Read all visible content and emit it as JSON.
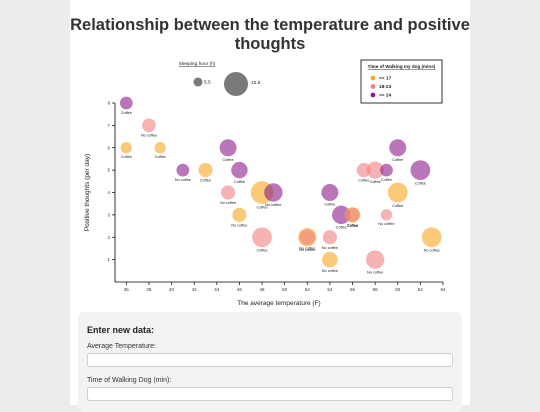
{
  "chart_data": {
    "type": "scatter",
    "title": "Relationship between the temperature and positive thoughts",
    "xlabel": "The average temperature (F)",
    "ylabel": "Positive thoughts (per day)",
    "xlim": [
      35,
      64
    ],
    "ylim": [
      0,
      8
    ],
    "xticks": [
      36,
      38,
      40,
      42,
      44,
      46,
      48,
      50,
      52,
      54,
      56,
      58,
      60,
      62,
      64
    ],
    "yticks": [
      1,
      2,
      3,
      4,
      5,
      6,
      7,
      8
    ],
    "size_legend": {
      "title": "Sleeping hour (h)",
      "min_label": "5.5",
      "max_label": "10.5",
      "min_value": 5.5,
      "max_value": 10.5
    },
    "color_legend": {
      "title": "Time of Walking my dog (mins)",
      "entries": [
        {
          "label": "<= 17",
          "color": "#f9a620"
        },
        {
          "label": "18-23",
          "color": "#f08080"
        },
        {
          "label": ">= 24",
          "color": "#8b1a8b"
        }
      ]
    },
    "points": [
      {
        "x": 36,
        "y": 6,
        "sleep": 6.0,
        "walk": "<= 17",
        "label": "Coffee"
      },
      {
        "x": 36,
        "y": 8,
        "sleep": 6.5,
        "walk": ">= 24",
        "label": "Coffee"
      },
      {
        "x": 38,
        "y": 7,
        "sleep": 6.8,
        "walk": "18-23",
        "label": "No coffee"
      },
      {
        "x": 39,
        "y": 6,
        "sleep": 6.0,
        "walk": "<= 17",
        "label": "Coffee"
      },
      {
        "x": 41,
        "y": 5,
        "sleep": 6.5,
        "walk": ">= 24",
        "label": "No coffee"
      },
      {
        "x": 43,
        "y": 5,
        "sleep": 7.0,
        "walk": "<= 17",
        "label": "Coffee"
      },
      {
        "x": 45,
        "y": 6,
        "sleep": 8.0,
        "walk": ">= 24",
        "label": "Coffee"
      },
      {
        "x": 45,
        "y": 4,
        "sleep": 7.0,
        "walk": "18-23",
        "label": "No coffee"
      },
      {
        "x": 46,
        "y": 5,
        "sleep": 7.8,
        "walk": ">= 24",
        "label": "Coffee"
      },
      {
        "x": 46,
        "y": 3,
        "sleep": 7.0,
        "walk": "<= 17",
        "label": "No coffee"
      },
      {
        "x": 48,
        "y": 4,
        "sleep": 10.0,
        "walk": "<= 17",
        "label": "Coffee"
      },
      {
        "x": 48,
        "y": 2,
        "sleep": 9.0,
        "walk": "18-23",
        "label": "Coffee"
      },
      {
        "x": 49,
        "y": 4,
        "sleep": 8.5,
        "walk": ">= 24",
        "label": "No coffee"
      },
      {
        "x": 52,
        "y": 2,
        "sleep": 8.5,
        "walk": "<= 17",
        "label": "No coffee"
      },
      {
        "x": 52,
        "y": 2,
        "sleep": 7.5,
        "walk": "18-23",
        "label": "No coffee"
      },
      {
        "x": 54,
        "y": 4,
        "sleep": 8.0,
        "walk": ">= 24",
        "label": "Coffee"
      },
      {
        "x": 54,
        "y": 2,
        "sleep": 7.0,
        "walk": "18-23",
        "label": "No coffee"
      },
      {
        "x": 54,
        "y": 1,
        "sleep": 7.5,
        "walk": "<= 17",
        "label": "No coffee"
      },
      {
        "x": 55,
        "y": 3,
        "sleep": 8.5,
        "walk": ">= 24",
        "label": "Coffee"
      },
      {
        "x": 56,
        "y": 3,
        "sleep": 7.5,
        "walk": "<= 17",
        "label": "Coffee"
      },
      {
        "x": 56,
        "y": 3,
        "sleep": 7.0,
        "walk": "18-23",
        "label": "Coffee"
      },
      {
        "x": 57,
        "y": 5,
        "sleep": 7.0,
        "walk": "18-23",
        "label": "Coffee"
      },
      {
        "x": 58,
        "y": 5,
        "sleep": 8.0,
        "walk": "18-23",
        "label": "Coffee"
      },
      {
        "x": 58,
        "y": 1,
        "sleep": 8.5,
        "walk": "18-23",
        "label": "No coffee"
      },
      {
        "x": 59,
        "y": 5,
        "sleep": 6.5,
        "walk": ">= 24",
        "label": "Coffee"
      },
      {
        "x": 59,
        "y": 3,
        "sleep": 6.0,
        "walk": "18-23",
        "label": "No coffee"
      },
      {
        "x": 60,
        "y": 6,
        "sleep": 8.0,
        "walk": ">= 24",
        "label": "Coffee"
      },
      {
        "x": 60,
        "y": 4,
        "sleep": 9.0,
        "walk": "<= 17",
        "label": "Coffee"
      },
      {
        "x": 62,
        "y": 5,
        "sleep": 9.0,
        "walk": ">= 24",
        "label": "Coffee"
      },
      {
        "x": 63,
        "y": 2,
        "sleep": 9.0,
        "walk": "<= 17",
        "label": "No coffee"
      }
    ]
  },
  "form": {
    "title": "Enter new data:",
    "temperature_label": "Average Temperature:",
    "temperature_value": "",
    "walking_label": "Time of Walking Dog (min):",
    "walking_value": ""
  }
}
